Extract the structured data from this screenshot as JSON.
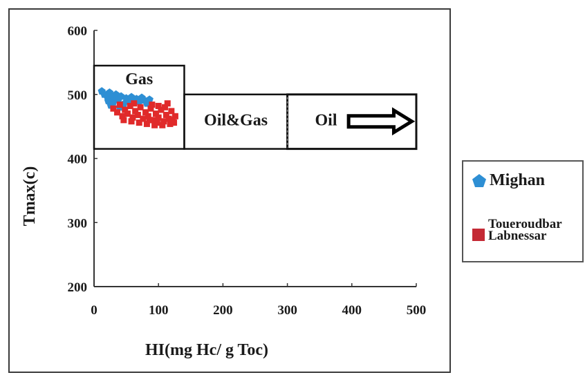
{
  "chart_data": {
    "type": "scatter",
    "xlabel": "HI(mg Hc/ g Toc)",
    "ylabel": "Tmax(c)",
    "xlim": [
      0,
      500
    ],
    "ylim": [
      200,
      600
    ],
    "xticks": [
      0,
      100,
      200,
      300,
      400,
      500
    ],
    "yticks": [
      200,
      300,
      400,
      500,
      600
    ],
    "xtick_labels": [
      "0",
      "100",
      "200",
      "300",
      "400",
      "500"
    ],
    "ytick_labels": [
      "200",
      "300",
      "400",
      "500",
      "600"
    ],
    "grid": false,
    "legend_position": "right",
    "zones": [
      {
        "label": "Gas",
        "x_range": [
          0,
          140
        ],
        "y_range": [
          415,
          545
        ]
      },
      {
        "label": "Oil&Gas",
        "x_range": [
          140,
          300
        ],
        "y_range": [
          415,
          500
        ]
      },
      {
        "label": "Oil",
        "x_range": [
          300,
          500
        ],
        "y_range": [
          415,
          500
        ]
      }
    ],
    "series": [
      {
        "name": "Mighan",
        "marker": "pentagon",
        "color": "#2e8fd4",
        "points": [
          [
            12,
            505
          ],
          [
            16,
            500
          ],
          [
            20,
            498
          ],
          [
            24,
            503
          ],
          [
            28,
            495
          ],
          [
            30,
            488
          ],
          [
            34,
            500
          ],
          [
            38,
            492
          ],
          [
            42,
            497
          ],
          [
            46,
            485
          ],
          [
            50,
            494
          ],
          [
            54,
            490
          ],
          [
            58,
            496
          ],
          [
            62,
            487
          ],
          [
            66,
            493
          ],
          [
            70,
            489
          ],
          [
            74,
            495
          ],
          [
            78,
            491
          ],
          [
            82,
            486
          ],
          [
            86,
            492
          ],
          [
            26,
            483
          ],
          [
            40,
            480
          ],
          [
            22,
            490
          ]
        ]
      },
      {
        "name": "Toueroudbar Labnessar",
        "marker": "square",
        "color": "#e02a2a",
        "points": [
          [
            30,
            478
          ],
          [
            36,
            472
          ],
          [
            40,
            484
          ],
          [
            44,
            466
          ],
          [
            48,
            476
          ],
          [
            52,
            470
          ],
          [
            56,
            482
          ],
          [
            60,
            464
          ],
          [
            64,
            474
          ],
          [
            68,
            468
          ],
          [
            72,
            480
          ],
          [
            76,
            462
          ],
          [
            80,
            472
          ],
          [
            84,
            466
          ],
          [
            88,
            478
          ],
          [
            92,
            460
          ],
          [
            96,
            470
          ],
          [
            100,
            464
          ],
          [
            104,
            476
          ],
          [
            108,
            458
          ],
          [
            112,
            468
          ],
          [
            116,
            462
          ],
          [
            120,
            474
          ],
          [
            124,
            456
          ],
          [
            126,
            466
          ],
          [
            58,
            458
          ],
          [
            70,
            456
          ],
          [
            82,
            454
          ],
          [
            94,
            452
          ],
          [
            106,
            452
          ],
          [
            118,
            454
          ],
          [
            122,
            460
          ],
          [
            46,
            460
          ],
          [
            62,
            486
          ],
          [
            90,
            484
          ],
          [
            100,
            482
          ],
          [
            110,
            480
          ],
          [
            114,
            486
          ],
          [
            98,
            456
          ],
          [
            86,
            460
          ]
        ]
      }
    ]
  },
  "legend": {
    "mighan_label": "Mighan",
    "tl_label_line1": "Toueroudbar",
    "tl_label_line2": "Labnessar"
  }
}
